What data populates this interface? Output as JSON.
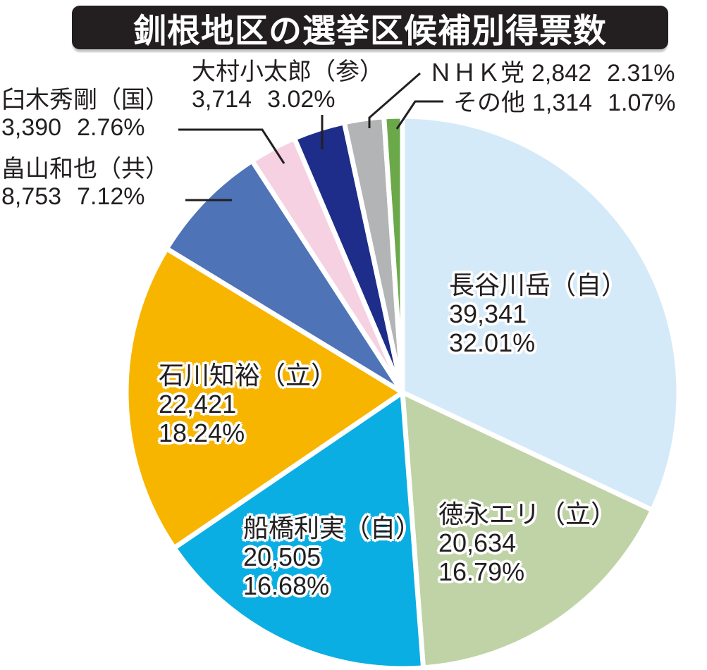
{
  "title": "釧根地区の選挙区候補別得票数",
  "colors": {
    "banner_bg": "#231f20",
    "banner_text": "#ffffff",
    "label_text": "#231f20",
    "leader_line": "#231f20",
    "slice_gap": "#ffffff"
  },
  "chart_data": {
    "type": "pie",
    "title": "釧根地区の選挙区候補別得票数",
    "start_angle_deg": 0,
    "direction": "clockwise",
    "legend": "none",
    "slices": [
      {
        "label": "長谷川岳（自）",
        "votes": "39,341",
        "percent": "32.01%",
        "value": 39341,
        "pct": 32.01,
        "color": "#d5eaf8",
        "label_placement": "inside"
      },
      {
        "label": "徳永エリ（立）",
        "votes": "20,634",
        "percent": "16.79%",
        "value": 20634,
        "pct": 16.79,
        "color": "#bfd3a6",
        "label_placement": "inside"
      },
      {
        "label": "船橋利実（自）",
        "votes": "20,505",
        "percent": "16.68%",
        "value": 20505,
        "pct": 16.68,
        "color": "#0aaee3",
        "label_placement": "inside"
      },
      {
        "label": "石川知裕（立）",
        "votes": "22,421",
        "percent": "18.24%",
        "value": 22421,
        "pct": 18.24,
        "color": "#f8b500",
        "label_placement": "inside"
      },
      {
        "label": "畠山和也（共）",
        "votes": "8,753",
        "percent": "7.12%",
        "value": 8753,
        "pct": 7.12,
        "color": "#4e73b7",
        "label_placement": "outside-left"
      },
      {
        "label": "臼木秀剛（国）",
        "votes": "3,390",
        "percent": "2.76%",
        "value": 3390,
        "pct": 2.76,
        "color": "#f6d1e1",
        "label_placement": "outside-left"
      },
      {
        "label": "大村小太郎（参）",
        "votes": "3,714",
        "percent": "3.02%",
        "value": 3714,
        "pct": 3.02,
        "color": "#1d2d89",
        "label_placement": "outside-top"
      },
      {
        "label": "ＮＨＫ党",
        "votes": "2,842",
        "percent": "2.31%",
        "value": 2842,
        "pct": 2.31,
        "color": "#b3b4b5",
        "label_placement": "outside-top-right"
      },
      {
        "label": "その他",
        "votes": "1,314",
        "percent": "1.07%",
        "value": 1314,
        "pct": 1.07,
        "color": "#6ba84a",
        "label_placement": "outside-top-right"
      }
    ]
  }
}
